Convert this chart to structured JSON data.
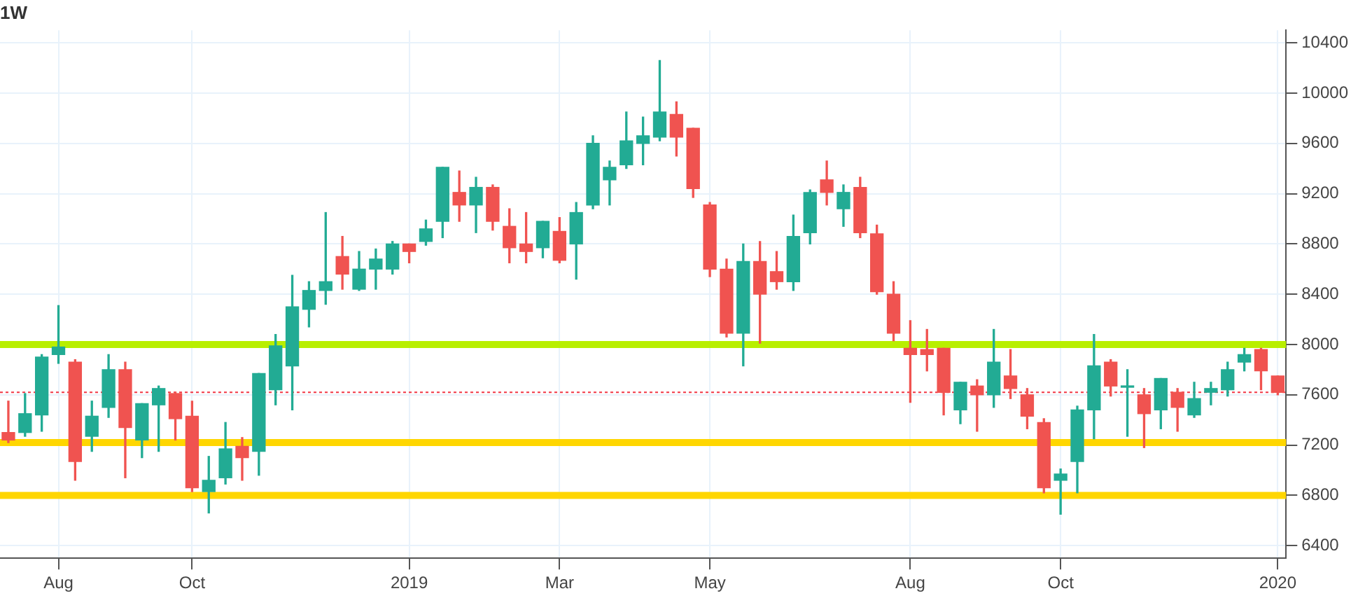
{
  "chart_data": {
    "type": "candlestick",
    "title": "1W",
    "categories": [
      null,
      null,
      null,
      "Aug",
      null,
      null,
      null,
      null,
      null,
      null,
      null,
      "Oct",
      null,
      null,
      null,
      null,
      null,
      null,
      null,
      null,
      null,
      null,
      null,
      null,
      "2019",
      null,
      null,
      null,
      null,
      null,
      null,
      null,
      null,
      "Mar",
      null,
      null,
      null,
      null,
      null,
      null,
      null,
      null,
      "May",
      null,
      null,
      null,
      null,
      null,
      null,
      null,
      null,
      null,
      null,
      null,
      "Aug",
      null,
      null,
      null,
      null,
      null,
      null,
      null,
      null,
      "Oct",
      null,
      null,
      null,
      null,
      null,
      null,
      null,
      null,
      null,
      null,
      null,
      null,
      "2020"
    ],
    "ohlc": [
      [
        7300,
        7550,
        7220,
        7240
      ],
      [
        7300,
        7610,
        7270,
        7450
      ],
      [
        7440,
        7920,
        7310,
        7900
      ],
      [
        7920,
        8310,
        7850,
        7980
      ],
      [
        7860,
        7880,
        6920,
        7070
      ],
      [
        7270,
        7550,
        7150,
        7430
      ],
      [
        7500,
        7920,
        7420,
        7800
      ],
      [
        7800,
        7860,
        6940,
        7340
      ],
      [
        7240,
        7530,
        7100,
        7530
      ],
      [
        7520,
        7670,
        7150,
        7650
      ],
      [
        7610,
        7620,
        7240,
        7410
      ],
      [
        7430,
        7550,
        6830,
        6860
      ],
      [
        6830,
        7110,
        6660,
        6920
      ],
      [
        6940,
        7380,
        6890,
        7170
      ],
      [
        7190,
        7260,
        6920,
        7100
      ],
      [
        7150,
        7770,
        6960,
        7770
      ],
      [
        7640,
        8080,
        7520,
        7990
      ],
      [
        7830,
        8550,
        7480,
        8300
      ],
      [
        8280,
        8500,
        8140,
        8430
      ],
      [
        8430,
        9050,
        8320,
        8500
      ],
      [
        8700,
        8860,
        8440,
        8560
      ],
      [
        8440,
        8740,
        8430,
        8600
      ],
      [
        8600,
        8760,
        8440,
        8680
      ],
      [
        8600,
        8820,
        8560,
        8800
      ],
      [
        8800,
        8800,
        8650,
        8740
      ],
      [
        8820,
        8990,
        8790,
        8920
      ],
      [
        8980,
        9410,
        8850,
        9410
      ],
      [
        9210,
        9380,
        8980,
        9110
      ],
      [
        9110,
        9330,
        8890,
        9250
      ],
      [
        9250,
        9270,
        8910,
        8980
      ],
      [
        8940,
        9080,
        8650,
        8770
      ],
      [
        8800,
        9050,
        8650,
        8740
      ],
      [
        8770,
        8980,
        8690,
        8980
      ],
      [
        8900,
        9010,
        8650,
        8670
      ],
      [
        8800,
        9130,
        8520,
        9050
      ],
      [
        9110,
        9660,
        9080,
        9600
      ],
      [
        9310,
        9460,
        9110,
        9410
      ],
      [
        9430,
        9850,
        9400,
        9620
      ],
      [
        9600,
        9810,
        9430,
        9660
      ],
      [
        9650,
        10260,
        9620,
        9850
      ],
      [
        9830,
        9930,
        9500,
        9650
      ],
      [
        9720,
        9720,
        9170,
        9240
      ],
      [
        9110,
        9130,
        8540,
        8600
      ],
      [
        8600,
        8680,
        8060,
        8090
      ],
      [
        8090,
        8800,
        7830,
        8660
      ],
      [
        8660,
        8820,
        8010,
        8400
      ],
      [
        8580,
        8740,
        8440,
        8500
      ],
      [
        8500,
        9030,
        8430,
        8860
      ],
      [
        8890,
        9230,
        8800,
        9210
      ],
      [
        9310,
        9460,
        9110,
        9210
      ],
      [
        9080,
        9270,
        8940,
        9210
      ],
      [
        9250,
        9330,
        8850,
        8890
      ],
      [
        8880,
        8950,
        8400,
        8420
      ],
      [
        8400,
        8500,
        8030,
        8090
      ],
      [
        7970,
        8190,
        7540,
        7920
      ],
      [
        7960,
        8120,
        7790,
        7920
      ],
      [
        7970,
        7970,
        7440,
        7620
      ],
      [
        7480,
        7700,
        7370,
        7700
      ],
      [
        7670,
        7720,
        7310,
        7600
      ],
      [
        7600,
        8120,
        7500,
        7860
      ],
      [
        7750,
        7960,
        7570,
        7650
      ],
      [
        7600,
        7650,
        7330,
        7430
      ],
      [
        7380,
        7410,
        6820,
        6860
      ],
      [
        6920,
        7010,
        6650,
        6970
      ],
      [
        7070,
        7510,
        6820,
        7480
      ],
      [
        7480,
        8080,
        7250,
        7830
      ],
      [
        7860,
        7880,
        7590,
        7670
      ],
      [
        7660,
        7800,
        7270,
        7670
      ],
      [
        7600,
        7650,
        7180,
        7450
      ],
      [
        7480,
        7730,
        7330,
        7730
      ],
      [
        7620,
        7650,
        7310,
        7500
      ],
      [
        7440,
        7700,
        7420,
        7570
      ],
      [
        7620,
        7700,
        7520,
        7650
      ],
      [
        7640,
        7860,
        7590,
        7800
      ],
      [
        7860,
        7970,
        7790,
        7920
      ],
      [
        7960,
        7970,
        7640,
        7790
      ],
      [
        7750,
        7750,
        7600,
        7620
      ]
    ],
    "ylim": [
      6300,
      10500
    ],
    "yticks": [
      6400,
      6800,
      7200,
      7600,
      8000,
      8400,
      8800,
      9200,
      9600,
      10000,
      10400
    ],
    "grid": true,
    "legend": false,
    "ref_lines": [
      {
        "axis": "y",
        "value": 8000,
        "color": "#b8ef00",
        "line_style": "solid"
      },
      {
        "axis": "y",
        "value": 7220,
        "color": "#ffd600",
        "line_style": "solid"
      },
      {
        "axis": "y",
        "value": 6800,
        "color": "#ffd600",
        "line_style": "solid"
      },
      {
        "axis": "y",
        "value": 7620,
        "color": "#f23645",
        "line_style": "dotted"
      }
    ]
  }
}
